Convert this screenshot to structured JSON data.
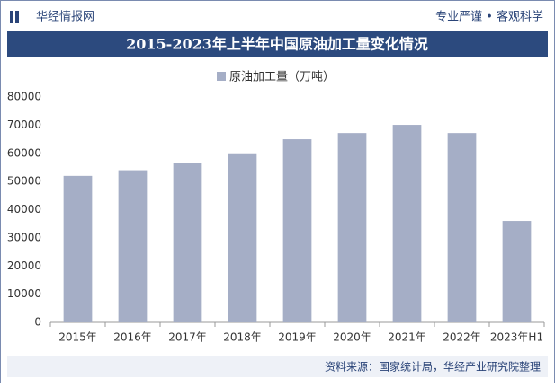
{
  "header": {
    "brand": "华经情报网",
    "slogan": "专业严谨 • 客观科学"
  },
  "chart_data": {
    "type": "bar",
    "title": "2015-2023年上半年中国原油加工量变化情况",
    "categories": [
      "2015年",
      "2016年",
      "2017年",
      "2018年",
      "2019年",
      "2020年",
      "2021年",
      "2022年",
      "2023年H1"
    ],
    "series": [
      {
        "name": "原油加工量（万吨）",
        "color": "#a5aec6",
        "values": [
          52000,
          54000,
          56500,
          60000,
          65000,
          67200,
          70100,
          67200,
          36000
        ]
      }
    ],
    "ylim": [
      0,
      80000
    ],
    "yticks": [
      0,
      10000,
      20000,
      30000,
      40000,
      50000,
      60000,
      70000,
      80000
    ],
    "grid": false,
    "legend": "top"
  },
  "footer": {
    "source": "资料来源：国家统计局，华经产业研究院整理"
  }
}
